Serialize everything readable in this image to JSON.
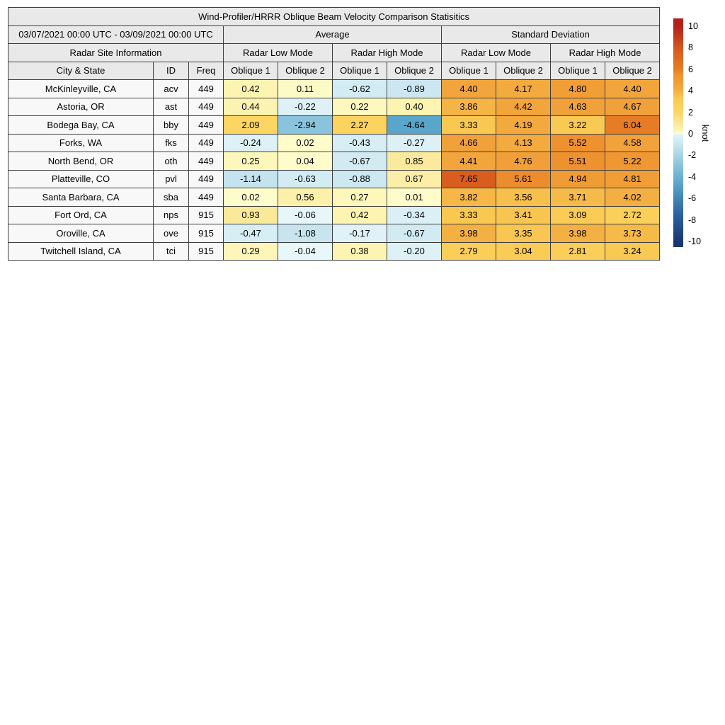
{
  "title": "Wind-Profiler/HRRR Oblique Beam Velocity Comparison Statisitics",
  "table": {
    "date_range": "03/07/2021 00:00 UTC - 03/09/2021 00:00 UTC",
    "group_average": "Average",
    "group_std": "Standard Deviation",
    "site_info": "Radar Site Information",
    "mode_labels": [
      "Radar Low Mode",
      "Radar High Mode",
      "Radar Low Mode",
      "Radar High Mode"
    ],
    "columns": [
      "City & State",
      "ID",
      "Freq",
      "Oblique 1",
      "Oblique 2",
      "Oblique 1",
      "Oblique 2",
      "Oblique 1",
      "Oblique 2",
      "Oblique 1",
      "Oblique 2"
    ]
  },
  "chart_data": {
    "type": "table",
    "title": "Wind-Profiler/HRRR Oblique Beam Velocity Comparison Statisitics",
    "subtitle": "03/07/2021 00:00 UTC - 03/09/2021 00:00 UTC",
    "column_groups": [
      "Radar Site Information",
      "Average / Radar Low Mode",
      "Average / Radar High Mode",
      "Standard Deviation / Radar Low Mode",
      "Standard Deviation / Radar High Mode"
    ],
    "value_columns": [
      "Avg Low Oblique 1",
      "Avg Low Oblique 2",
      "Avg High Oblique 1",
      "Avg High Oblique 2",
      "SD Low Oblique 1",
      "SD Low Oblique 2",
      "SD High Oblique 1",
      "SD High Oblique 2"
    ],
    "rows": [
      {
        "city": "McKinleyville, CA",
        "id": "acv",
        "freq": "449",
        "values": [
          0.42,
          0.11,
          -0.62,
          -0.89,
          4.4,
          4.17,
          4.8,
          4.4
        ]
      },
      {
        "city": "Astoria, OR",
        "id": "ast",
        "freq": "449",
        "values": [
          0.44,
          -0.22,
          0.22,
          0.4,
          3.86,
          4.42,
          4.63,
          4.67
        ]
      },
      {
        "city": "Bodega Bay, CA",
        "id": "bby",
        "freq": "449",
        "values": [
          2.09,
          -2.94,
          2.27,
          -4.64,
          3.33,
          4.19,
          3.22,
          6.04
        ]
      },
      {
        "city": "Forks, WA",
        "id": "fks",
        "freq": "449",
        "values": [
          -0.24,
          0.02,
          -0.43,
          -0.27,
          4.66,
          4.13,
          5.52,
          4.58
        ]
      },
      {
        "city": "North Bend, OR",
        "id": "oth",
        "freq": "449",
        "values": [
          0.25,
          0.04,
          -0.67,
          0.85,
          4.41,
          4.76,
          5.51,
          5.22
        ]
      },
      {
        "city": "Platteville, CO",
        "id": "pvl",
        "freq": "449",
        "values": [
          -1.14,
          -0.63,
          -0.88,
          0.67,
          7.65,
          5.61,
          4.94,
          4.81
        ]
      },
      {
        "city": "Santa Barbara, CA",
        "id": "sba",
        "freq": "449",
        "values": [
          0.02,
          0.56,
          0.27,
          0.01,
          3.82,
          3.56,
          3.71,
          4.02
        ]
      },
      {
        "city": "Fort Ord, CA",
        "id": "nps",
        "freq": "915",
        "values": [
          0.93,
          -0.06,
          0.42,
          -0.34,
          3.33,
          3.41,
          3.09,
          2.72
        ]
      },
      {
        "city": "Oroville, CA",
        "id": "ove",
        "freq": "915",
        "values": [
          -0.47,
          -1.08,
          -0.17,
          -0.67,
          3.98,
          3.35,
          3.98,
          3.73
        ]
      },
      {
        "city": "Twitchell Island, CA",
        "id": "tci",
        "freq": "915",
        "values": [
          0.29,
          -0.04,
          0.38,
          -0.2,
          2.79,
          3.04,
          2.81,
          3.24
        ]
      }
    ],
    "colorbar": {
      "label": "knot",
      "ticks": [
        10,
        8,
        6,
        4,
        2,
        0,
        -2,
        -4,
        -6,
        -8,
        -10
      ],
      "range": [
        -10,
        10
      ]
    }
  },
  "colors": {
    "border": "#3f3f3f",
    "header_bg": "#e9e9e9",
    "label_cell_bg": "#f8f8f8",
    "warm_stops": [
      [
        0.0,
        "#FFFCCD"
      ],
      [
        0.4,
        "#FDF4B2"
      ],
      [
        0.9,
        "#FBE99B"
      ],
      [
        2.1,
        "#FCD563"
      ],
      [
        3.3,
        "#F9C952"
      ],
      [
        4.2,
        "#F3A93E"
      ],
      [
        5.5,
        "#EE922F"
      ],
      [
        6.0,
        "#E67D25"
      ],
      [
        7.7,
        "#D85C1F"
      ],
      [
        10.0,
        "#B2221A"
      ]
    ],
    "cool_stops": [
      [
        0.0,
        "#EBF8FA"
      ],
      [
        0.2,
        "#DEF1F7"
      ],
      [
        0.6,
        "#D4ECF4"
      ],
      [
        1.1,
        "#C6E4EF"
      ],
      [
        2.9,
        "#8BC5DC"
      ],
      [
        4.6,
        "#5AA6CC"
      ],
      [
        7.5,
        "#2A62A0"
      ],
      [
        10.0,
        "#193773"
      ]
    ]
  }
}
